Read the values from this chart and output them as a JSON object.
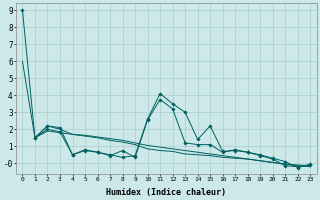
{
  "xlabel": "Humidex (Indice chaleur)",
  "background_color": "#cce8e8",
  "grid_color": "#aacece",
  "line_color": "#006060",
  "x_values": [
    0,
    1,
    2,
    3,
    4,
    5,
    6,
    7,
    8,
    9,
    10,
    11,
    12,
    13,
    14,
    15,
    16,
    17,
    18,
    19,
    20,
    21,
    22,
    23
  ],
  "series1": [
    9.0,
    1.5,
    2.2,
    2.1,
    0.5,
    0.8,
    0.65,
    0.5,
    0.35,
    0.45,
    2.6,
    4.1,
    3.5,
    3.0,
    1.4,
    2.2,
    0.7,
    0.75,
    0.65,
    0.45,
    0.25,
    -0.15,
    -0.2,
    -0.1
  ],
  "series2": [
    6.0,
    1.5,
    2.2,
    2.0,
    1.7,
    1.6,
    1.5,
    1.35,
    1.25,
    1.1,
    0.85,
    0.75,
    0.7,
    0.55,
    0.5,
    0.45,
    0.35,
    0.3,
    0.25,
    0.15,
    0.05,
    -0.05,
    -0.15,
    -0.2
  ],
  "series3": [
    null,
    1.5,
    1.9,
    1.8,
    1.7,
    1.65,
    1.55,
    1.45,
    1.35,
    1.2,
    1.05,
    0.95,
    0.85,
    0.75,
    0.65,
    0.55,
    0.45,
    0.35,
    0.25,
    0.15,
    0.05,
    -0.05,
    -0.1,
    -0.15
  ],
  "series4": [
    null,
    1.5,
    2.0,
    1.85,
    0.5,
    0.75,
    0.65,
    0.45,
    0.75,
    0.35,
    2.55,
    3.75,
    3.2,
    1.2,
    1.1,
    1.1,
    0.65,
    0.8,
    0.65,
    0.5,
    0.3,
    0.1,
    -0.25,
    -0.05
  ],
  "xlim": [
    -0.5,
    23.5
  ],
  "ylim": [
    -0.6,
    9.4
  ],
  "yticks": [
    0,
    1,
    2,
    3,
    4,
    5,
    6,
    7,
    8,
    9
  ],
  "ytick_labels": [
    "-0",
    "1",
    "2",
    "3",
    "4",
    "5",
    "6",
    "7",
    "8",
    "9"
  ],
  "xticks": [
    0,
    1,
    2,
    3,
    4,
    5,
    6,
    7,
    8,
    9,
    10,
    11,
    12,
    13,
    14,
    15,
    16,
    17,
    18,
    19,
    20,
    21,
    22,
    23
  ]
}
